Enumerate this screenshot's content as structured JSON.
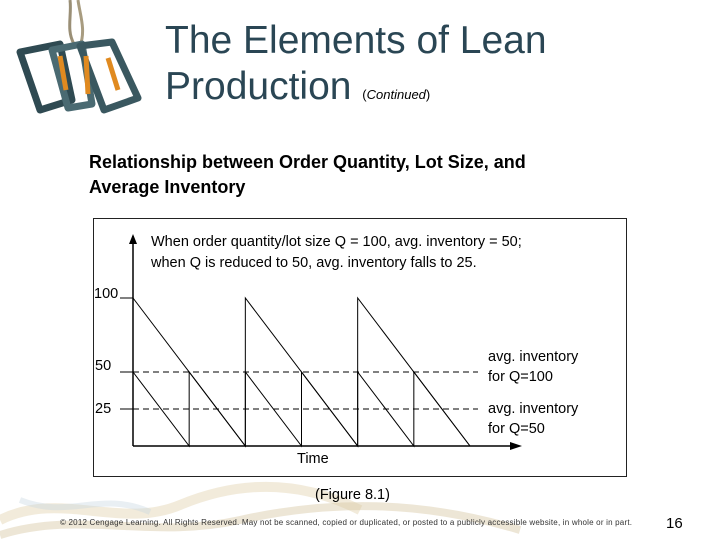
{
  "slide": {
    "title_line1": "The Elements of Lean",
    "title_line2": "Production",
    "title_paren_open": "(",
    "title_continued": "Continued",
    "title_paren_close": ")",
    "subtitle_line1": "Relationship between Order Quantity, Lot Size, and",
    "subtitle_line2": "Average Inventory",
    "figure_caption": "(Figure 8.1)",
    "copyright": "© 2012 Cengage Learning. All Rights Reserved. May not be scanned, copied or duplicated, or posted to a publicly accessible website, in whole or in part.",
    "page_number": "16",
    "logo_icon": "carabiner-icon"
  },
  "chart_data": {
    "type": "line",
    "note_line1": "When order quantity/lot size Q = 100, avg. inventory = 50;",
    "note_line2": "when Q is reduced to 50, avg. inventory falls to 25.",
    "xlabel": "Time",
    "ylabel": "",
    "yticks": [
      "100",
      "50",
      "25"
    ],
    "ylim": [
      0,
      100
    ],
    "xlim": [
      0,
      12
    ],
    "series": [
      {
        "x": [
          0,
          4,
          4,
          8,
          8,
          12
        ],
        "y": [
          100,
          0,
          100,
          0,
          100,
          0
        ]
      },
      {
        "x": [
          0,
          2,
          2,
          4,
          4,
          6,
          6,
          8,
          8,
          10,
          10,
          12
        ],
        "y": [
          50,
          0,
          50,
          0,
          50,
          0,
          50,
          0,
          50,
          0,
          50,
          0
        ]
      }
    ],
    "reference_lines": [
      {
        "y": 50,
        "label_line1": "avg. inventory",
        "label_line2": "for Q=100"
      },
      {
        "y": 25,
        "label_line1": "avg. inventory",
        "label_line2": "for Q=50"
      }
    ],
    "grid": false
  }
}
